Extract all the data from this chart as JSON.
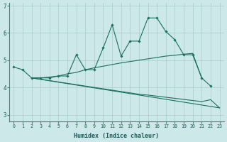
{
  "xlabel": "Humidex (Indice chaleur)",
  "bg_color": "#cce8e8",
  "grid_color": "#aacccc",
  "line_color": "#1a7060",
  "xlim": [
    -0.5,
    23.5
  ],
  "ylim": [
    2.75,
    7.1
  ],
  "xticks": [
    0,
    1,
    2,
    3,
    4,
    5,
    6,
    7,
    8,
    9,
    10,
    11,
    12,
    13,
    14,
    15,
    16,
    17,
    18,
    19,
    20,
    21,
    22,
    23
  ],
  "yticks": [
    3,
    4,
    5,
    6,
    7
  ],
  "line1_x": [
    0,
    1,
    2,
    3,
    4,
    5,
    6,
    7,
    8,
    9,
    10,
    11,
    12,
    13,
    14,
    15,
    16,
    17,
    18,
    19,
    20,
    21,
    22
  ],
  "line1_y": [
    4.75,
    4.65,
    4.35,
    4.35,
    4.35,
    4.42,
    4.42,
    5.2,
    4.65,
    4.65,
    5.45,
    6.3,
    5.15,
    5.7,
    5.7,
    6.55,
    6.55,
    6.05,
    5.75,
    5.2,
    5.2,
    4.35,
    4.05
  ],
  "line2_x": [
    2,
    3,
    4,
    5,
    6,
    7,
    8,
    9,
    10,
    11,
    12,
    13,
    14,
    15,
    16,
    17,
    18,
    19,
    20,
    21
  ],
  "line2_y": [
    4.35,
    4.35,
    4.38,
    4.42,
    4.5,
    4.55,
    4.65,
    4.72,
    4.78,
    4.84,
    4.9,
    4.95,
    5.0,
    5.05,
    5.1,
    5.15,
    5.18,
    5.22,
    5.25,
    4.35
  ],
  "line3_x": [
    2,
    3,
    4,
    5,
    6,
    7,
    8,
    9,
    10,
    11,
    12,
    13,
    14,
    15,
    16,
    17,
    18,
    19,
    20,
    21,
    22,
    23
  ],
  "line3_y": [
    4.35,
    4.3,
    4.25,
    4.2,
    4.15,
    4.1,
    4.05,
    4.0,
    3.95,
    3.9,
    3.85,
    3.8,
    3.75,
    3.72,
    3.68,
    3.64,
    3.6,
    3.56,
    3.52,
    3.48,
    3.55,
    3.25
  ],
  "line4_x": [
    2,
    23
  ],
  "line4_y": [
    4.35,
    3.25
  ]
}
